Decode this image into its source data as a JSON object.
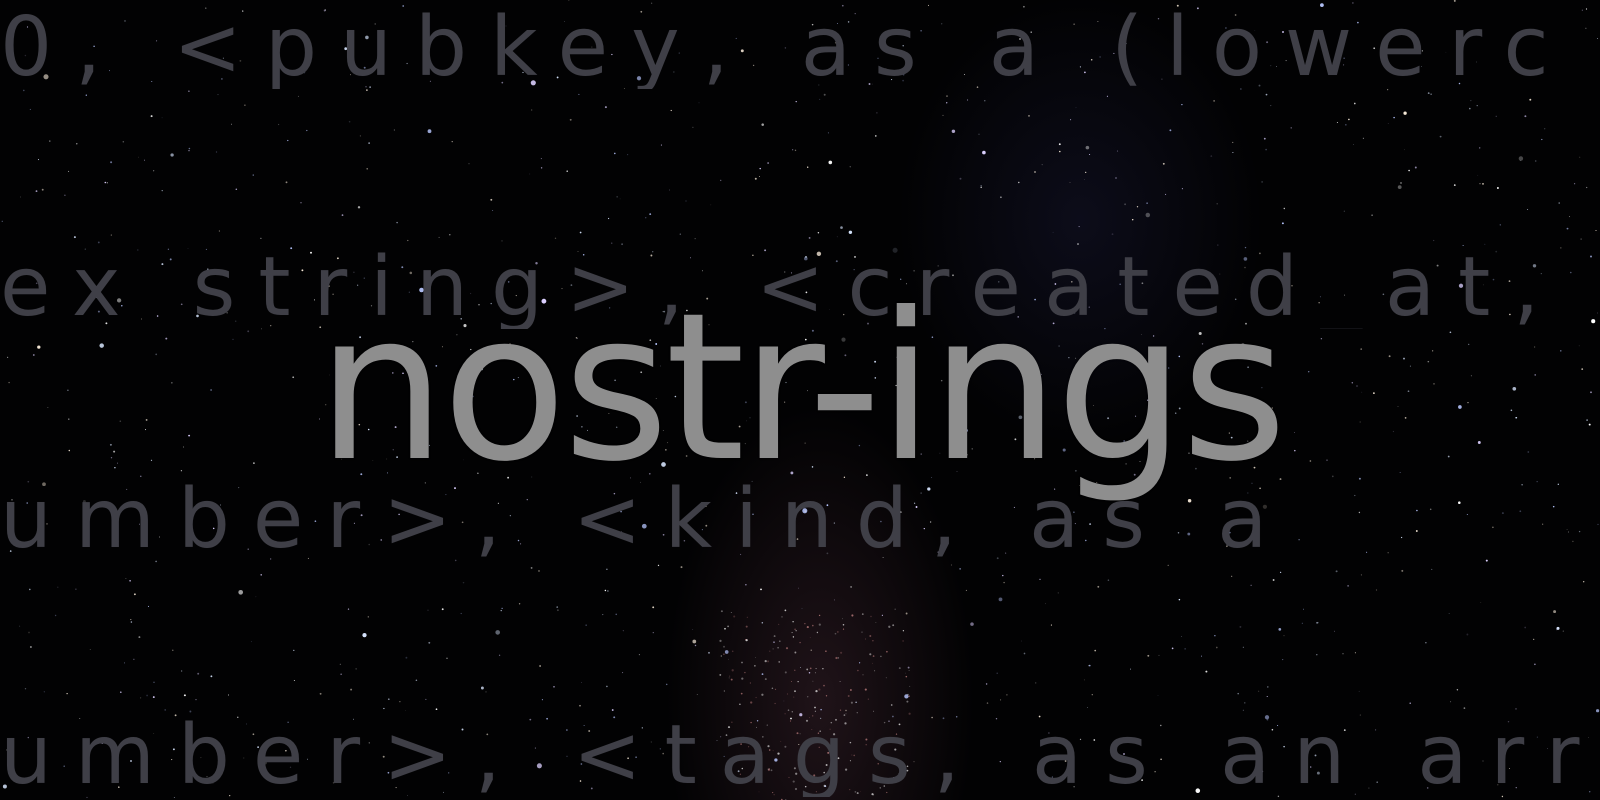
{
  "hero": {
    "title": "nostr-ings",
    "background_lines": [
      "0, <pubkey, as a (lowerc",
      "ex string>, <created_at,",
      "umber>, <kind, as a",
      "umber>, <tags, as an arr"
    ]
  },
  "colors": {
    "background": "#020203",
    "title_text": "#8e8e8e",
    "background_text": "#3f3f47"
  }
}
